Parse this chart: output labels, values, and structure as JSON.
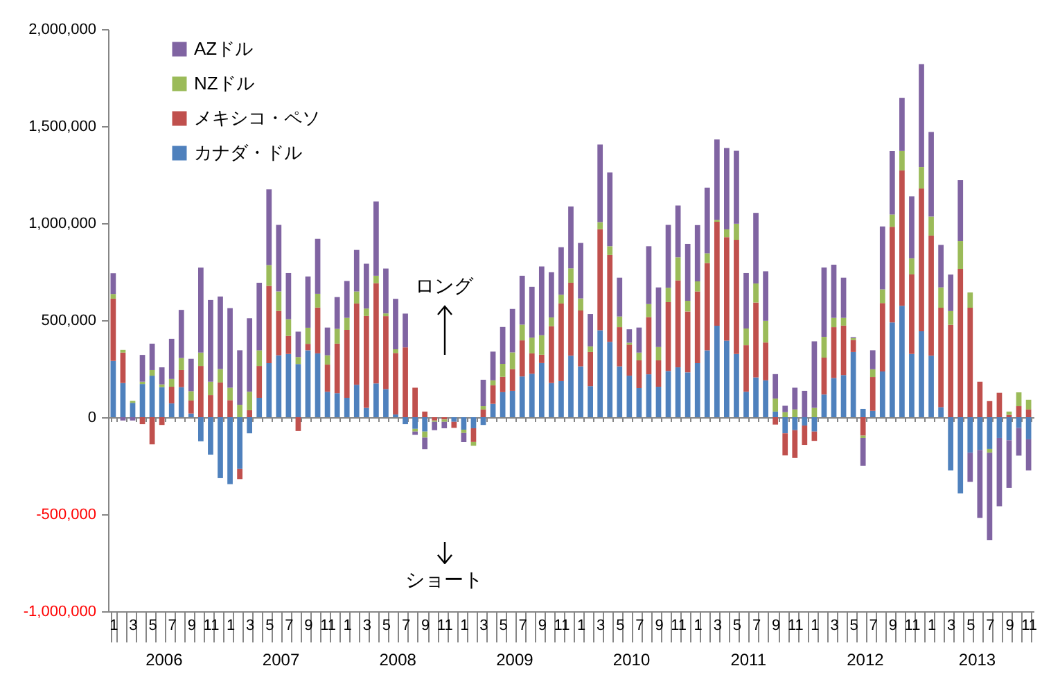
{
  "chart_data": {
    "type": "bar",
    "stacked": true,
    "legend": "top left",
    "categories": [
      "1",
      null,
      "3",
      null,
      "5",
      null,
      "7",
      null,
      "9",
      null,
      "11",
      null,
      "1",
      null,
      "3",
      null,
      "5",
      null,
      "7",
      null,
      "9",
      null,
      "11",
      null,
      "1",
      null,
      "3",
      null,
      "5",
      null,
      "7",
      null,
      "9",
      null,
      "11",
      null,
      "1",
      null,
      "3",
      null,
      "5",
      null,
      "7",
      null,
      "9",
      null,
      "11",
      null,
      "1",
      null,
      "3",
      null,
      "5",
      null,
      "7",
      null,
      "9",
      null,
      "11",
      null,
      "1",
      null,
      "3",
      null,
      "5",
      null,
      "7",
      null,
      "9",
      null,
      "11",
      null,
      "1",
      null,
      "3",
      null,
      "5",
      null,
      "7",
      null,
      "9",
      null,
      "11",
      null,
      "1",
      null,
      "3",
      null,
      "5",
      null,
      "7",
      null,
      "9",
      null,
      "11"
    ],
    "series": [
      {
        "name": "カナダ・ドル",
        "color": "#4f81bd",
        "values": [
          290000,
          176000,
          74000,
          171000,
          214000,
          155000,
          71000,
          155000,
          19000,
          -124000,
          -193000,
          -314000,
          -345000,
          -267000,
          -83000,
          100000,
          279000,
          319000,
          326000,
          274000,
          345000,
          329000,
          131000,
          124000,
          100000,
          167000,
          48000,
          174000,
          145000,
          14000,
          -36000,
          -60000,
          -74000,
          null,
          null,
          -24000,
          -64000,
          -57000,
          -40000,
          69000,
          129000,
          136000,
          210000,
          224000,
          279000,
          176000,
          186000,
          317000,
          262000,
          160000,
          448000,
          388000,
          262000,
          214000,
          150000,
          221000,
          157000,
          238000,
          257000,
          231000,
          279000,
          345000,
          471000,
          395000,
          326000,
          131000,
          205000,
          190000,
          29000,
          -83000,
          -67000,
          -43000,
          -74000,
          117000,
          202000,
          217000,
          336000,
          43000,
          33000,
          236000,
          488000,
          574000,
          326000,
          443000,
          317000,
          52000,
          -274000,
          -393000,
          -183000,
          -169000,
          -164000,
          -107000,
          -119000,
          -55000,
          -114000
        ]
      },
      {
        "name": "メキシコ・ペソ",
        "color": "#c0504d",
        "values": [
          321000,
          157000,
          0,
          -36000,
          -140000,
          -40000,
          86000,
          88000,
          67000,
          264000,
          114000,
          179000,
          88000,
          -52000,
          36000,
          164000,
          398000,
          229000,
          93000,
          -71000,
          33000,
          236000,
          140000,
          255000,
          350000,
          419000,
          474000,
          517000,
          376000,
          317000,
          360000,
          152000,
          29000,
          -17000,
          -12000,
          -31000,
          0,
          -71000,
          40000,
          95000,
          79000,
          112000,
          186000,
          105000,
          43000,
          293000,
          400000,
          376000,
          288000,
          176000,
          521000,
          448000,
          202000,
          160000,
          143000,
          295000,
          136000,
          355000,
          448000,
          314000,
          369000,
          450000,
          536000,
          533000,
          588000,
          240000,
          386000,
          195000,
          -38000,
          -114000,
          -143000,
          -100000,
          -48000,
          190000,
          262000,
          255000,
          62000,
          -95000,
          174000,
          352000,
          493000,
          698000,
          410000,
          736000,
          619000,
          512000,
          476000,
          764000,
          564000,
          183000,
          83000,
          126000,
          12000,
          57000,
          40000
        ]
      },
      {
        "name": "NZドル",
        "color": "#9bbb59",
        "values": [
          24000,
          14000,
          10000,
          12000,
          29000,
          14000,
          40000,
          62000,
          48000,
          69000,
          69000,
          69000,
          64000,
          64000,
          95000,
          81000,
          107000,
          100000,
          86000,
          36000,
          83000,
          71000,
          48000,
          76000,
          62000,
          62000,
          38000,
          38000,
          14000,
          19000,
          0,
          -14000,
          -31000,
          -7000,
          -12000,
          0,
          -17000,
          -19000,
          17000,
          26000,
          67000,
          86000,
          81000,
          81000,
          100000,
          45000,
          45000,
          74000,
          62000,
          29000,
          36000,
          45000,
          55000,
          10000,
          40000,
          67000,
          69000,
          74000,
          119000,
          55000,
          52000,
          50000,
          10000,
          40000,
          83000,
          86000,
          98000,
          112000,
          67000,
          26000,
          40000,
          0,
          48000,
          107000,
          48000,
          40000,
          10000,
          -12000,
          40000,
          71000,
          64000,
          100000,
          83000,
          110000,
          98000,
          105000,
          71000,
          143000,
          79000,
          0,
          -19000,
          0,
          17000,
          71000,
          50000
        ]
      },
      {
        "name": "AZドル",
        "color": "#8064a2",
        "values": [
          107000,
          -17000,
          -17000,
          138000,
          136000,
          88000,
          207000,
          248000,
          167000,
          438000,
          421000,
          374000,
          410000,
          281000,
          379000,
          348000,
          390000,
          343000,
          238000,
          131000,
          264000,
          283000,
          143000,
          164000,
          190000,
          214000,
          231000,
          383000,
          231000,
          260000,
          174000,
          -17000,
          -60000,
          -43000,
          -33000,
          0,
          -48000,
          0,
          136000,
          148000,
          190000,
          224000,
          252000,
          262000,
          355000,
          233000,
          245000,
          319000,
          286000,
          167000,
          400000,
          381000,
          200000,
          69000,
          129000,
          298000,
          307000,
          324000,
          267000,
          293000,
          290000,
          338000,
          414000,
          419000,
          376000,
          286000,
          364000,
          255000,
          126000,
          33000,
          112000,
          136000,
          343000,
          357000,
          274000,
          207000,
          5000,
          -143000,
          98000,
          324000,
          326000,
          274000,
          319000,
          531000,
          436000,
          219000,
          188000,
          314000,
          -150000,
          -350000,
          -450000,
          -352000,
          -245000,
          -143000,
          -160000
        ]
      }
    ],
    "ylim": [
      -1000000,
      2000000
    ],
    "yticks": [
      {
        "value": -1000000,
        "label": "-1,000,000"
      },
      {
        "value": -500000,
        "label": "-500,000"
      },
      0,
      {
        "value": 500000,
        "label": "500,000"
      },
      {
        "value": 1000000,
        "label": "1,000,000"
      },
      {
        "value": 1500000,
        "label": "1,500,000"
      },
      {
        "value": 2000000,
        "label": "2,000,000"
      }
    ],
    "annotations": [
      "ロング",
      "ショート",
      "2006",
      "2007",
      "2008",
      "2009",
      "2010",
      "2011",
      "2012",
      "2013"
    ]
  }
}
